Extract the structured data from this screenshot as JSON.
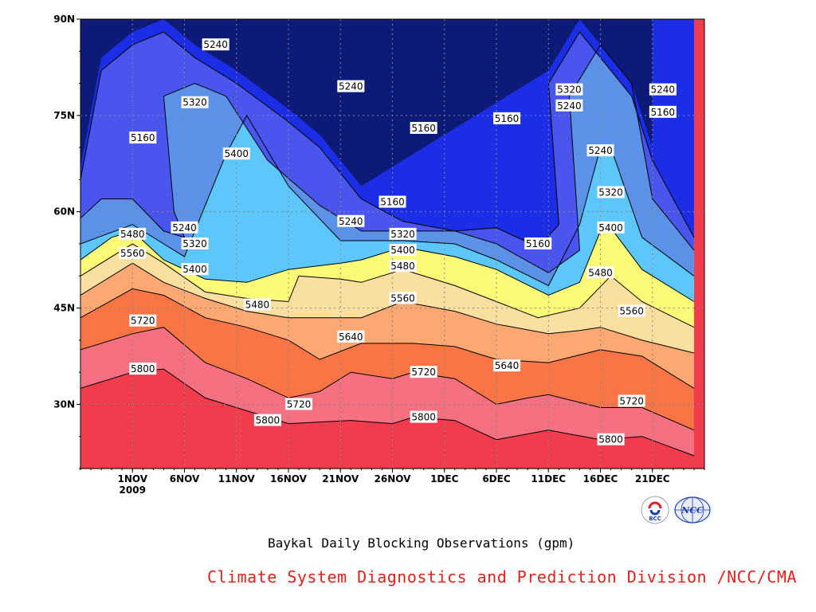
{
  "chart_data": {
    "type": "contour",
    "title": "Baykal Daily Blocking Observations (gpm)",
    "source": "Climate System Diagnostics and Prediction Division /NCC/CMA",
    "x_ticks": [
      {
        "label": "1NOV",
        "sub": "2009",
        "day": 0
      },
      {
        "label": "6NOV",
        "day": 5
      },
      {
        "label": "11NOV",
        "day": 10
      },
      {
        "label": "16NOV",
        "day": 15
      },
      {
        "label": "21NOV",
        "day": 20
      },
      {
        "label": "26NOV",
        "day": 25
      },
      {
        "label": "1DEC",
        "day": 30
      },
      {
        "label": "6DEC",
        "day": 35
      },
      {
        "label": "11DEC",
        "day": 40
      },
      {
        "label": "16DEC",
        "day": 45
      },
      {
        "label": "21DEC",
        "day": 50
      }
    ],
    "x_range": [
      "27OCT2009",
      "26DEC2009"
    ],
    "y_ticks": [
      {
        "label": "30N",
        "lat": 30
      },
      {
        "label": "45N",
        "lat": 45
      },
      {
        "label": "60N",
        "lat": 60
      },
      {
        "label": "75N",
        "lat": 75
      },
      {
        "label": "90N",
        "lat": 90
      }
    ],
    "ylim": [
      20,
      90
    ],
    "grid": true,
    "contour_levels": [
      5160,
      5240,
      5320,
      5400,
      5480,
      5560,
      5640,
      5720,
      5800
    ],
    "contour_colors": [
      "#0e1a78",
      "#1b2ee6",
      "#4a55ee",
      "#5b92e8",
      "#5dc6fa",
      "#fafa78",
      "#fae0a0",
      "#fba872",
      "#fa7546",
      "#f57080",
      "#f03c4c"
    ],
    "contour_lines": [
      {
        "level": 5800,
        "points": [
          [
            -5,
            32.5
          ],
          [
            0,
            35
          ],
          [
            3,
            35.5
          ],
          [
            7,
            31
          ],
          [
            11,
            29
          ],
          [
            15,
            27
          ],
          [
            21,
            27.5
          ],
          [
            25,
            27
          ],
          [
            27,
            28
          ],
          [
            31,
            27.5
          ],
          [
            35,
            24.5
          ],
          [
            40,
            26
          ],
          [
            45,
            24.5
          ],
          [
            49,
            25
          ],
          [
            54,
            22
          ]
        ]
      },
      {
        "level": 5720,
        "points": [
          [
            -5,
            38.5
          ],
          [
            0,
            41
          ],
          [
            3,
            42
          ],
          [
            7,
            36.5
          ],
          [
            11,
            34
          ],
          [
            15,
            31
          ],
          [
            18,
            32
          ],
          [
            21,
            35
          ],
          [
            25,
            34
          ],
          [
            27,
            35
          ],
          [
            31,
            34
          ],
          [
            35,
            30
          ],
          [
            38,
            31
          ],
          [
            40,
            31.5
          ],
          [
            45,
            29.5
          ],
          [
            49,
            29.5
          ],
          [
            54,
            26
          ]
        ]
      },
      {
        "level": 5640,
        "points": [
          [
            -5,
            43.5
          ],
          [
            0,
            48
          ],
          [
            3,
            47
          ],
          [
            7,
            43.5
          ],
          [
            11,
            42
          ],
          [
            15,
            40
          ],
          [
            18,
            37
          ],
          [
            22,
            39.5
          ],
          [
            27,
            39.5
          ],
          [
            31,
            39
          ],
          [
            35,
            37
          ],
          [
            40,
            36.5
          ],
          [
            45,
            38.5
          ],
          [
            49,
            37.5
          ],
          [
            54,
            32.5
          ]
        ]
      },
      {
        "level": 5560,
        "points": [
          [
            -5,
            47
          ],
          [
            0,
            52
          ],
          [
            3,
            49
          ],
          [
            7,
            46.5
          ],
          [
            11,
            44.5
          ],
          [
            15,
            43.5
          ],
          [
            18,
            43.5
          ],
          [
            22,
            43.5
          ],
          [
            26,
            46
          ],
          [
            31,
            44.5
          ],
          [
            35,
            42.5
          ],
          [
            40,
            41
          ],
          [
            43,
            41.5
          ],
          [
            45,
            42
          ],
          [
            49,
            40
          ],
          [
            54,
            38
          ]
        ]
      },
      {
        "level": 5480,
        "points": [
          [
            -5,
            50
          ],
          [
            0,
            55
          ],
          [
            3,
            52
          ],
          [
            7,
            47.5
          ],
          [
            11,
            46.5
          ],
          [
            15,
            46
          ],
          [
            16,
            50
          ],
          [
            20,
            49.5
          ],
          [
            22,
            49
          ],
          [
            26,
            51
          ],
          [
            31,
            48.5
          ],
          [
            35,
            46
          ],
          [
            39,
            43.5
          ],
          [
            43,
            45
          ],
          [
            46,
            50
          ],
          [
            49,
            46
          ],
          [
            54,
            42
          ]
        ]
      },
      {
        "level": 5400,
        "points": [
          [
            -5,
            52.5
          ],
          [
            -2,
            56
          ],
          [
            0,
            57
          ],
          [
            3,
            52.5
          ],
          [
            7,
            49.5
          ],
          [
            11,
            49
          ],
          [
            15,
            51
          ],
          [
            20,
            52
          ],
          [
            22,
            52.5
          ],
          [
            26,
            54.5
          ],
          [
            31,
            53
          ],
          [
            35,
            51
          ],
          [
            40,
            47
          ],
          [
            43,
            49
          ],
          [
            45,
            57
          ],
          [
            46,
            57.5
          ],
          [
            49,
            51
          ],
          [
            54,
            46
          ]
        ]
      },
      {
        "level": 5320,
        "points": [
          [
            -5,
            55
          ],
          [
            0,
            58
          ],
          [
            3,
            55
          ],
          [
            5,
            53
          ],
          [
            9,
            69
          ],
          [
            11,
            75
          ],
          [
            15,
            64
          ],
          [
            20,
            55.5
          ],
          [
            26,
            55.5
          ],
          [
            31,
            55
          ],
          [
            35,
            52.5
          ],
          [
            40,
            48.5
          ],
          [
            43,
            58
          ],
          [
            45,
            70
          ],
          [
            46,
            70
          ],
          [
            49,
            56
          ],
          [
            54,
            50
          ]
        ]
      },
      {
        "level": 5240,
        "points": [
          [
            -5,
            59
          ],
          [
            -3,
            62
          ],
          [
            0,
            62
          ],
          [
            3,
            57
          ],
          [
            5,
            56
          ],
          [
            4,
            60
          ],
          [
            3,
            78
          ],
          [
            6,
            80
          ],
          [
            9,
            78
          ],
          [
            13,
            68
          ],
          [
            18,
            61
          ],
          [
            22,
            57
          ],
          [
            26,
            57
          ],
          [
            31,
            57
          ],
          [
            35,
            55
          ],
          [
            40,
            50.5
          ],
          [
            43,
            54
          ],
          [
            42,
            78
          ],
          [
            45,
            86
          ],
          [
            48,
            80
          ],
          [
            50,
            62
          ],
          [
            54,
            54
          ]
        ]
      },
      {
        "level": 5160,
        "points": [
          [
            -5,
            65
          ],
          [
            -3,
            82
          ],
          [
            0,
            86
          ],
          [
            3,
            88
          ],
          [
            6,
            84
          ],
          [
            10,
            80
          ],
          [
            15,
            74
          ],
          [
            18,
            70
          ],
          [
            22,
            62
          ],
          [
            26,
            58.5
          ],
          [
            31,
            57
          ],
          [
            35,
            57.5
          ],
          [
            39,
            54.5
          ],
          [
            41,
            58
          ],
          [
            40,
            80
          ],
          [
            43,
            88
          ],
          [
            46,
            82
          ],
          [
            48,
            78
          ],
          [
            50,
            68
          ],
          [
            54,
            56
          ]
        ]
      }
    ],
    "contour_labels": [
      {
        "text": "5240",
        "day": 8,
        "lat": 86
      },
      {
        "text": "5320",
        "day": 6,
        "lat": 77
      },
      {
        "text": "5160",
        "day": 1,
        "lat": 71.5
      },
      {
        "text": "5400",
        "day": 10,
        "lat": 69
      },
      {
        "text": "5240",
        "day": 5,
        "lat": 57.5
      },
      {
        "text": "5320",
        "day": 6,
        "lat": 55
      },
      {
        "text": "5480",
        "day": 0,
        "lat": 56.5
      },
      {
        "text": "5560",
        "day": 0,
        "lat": 53.5
      },
      {
        "text": "5400",
        "day": 6,
        "lat": 51
      },
      {
        "text": "5480",
        "day": 12,
        "lat": 45.5
      },
      {
        "text": "5720",
        "day": 1,
        "lat": 43
      },
      {
        "text": "5800",
        "day": 1,
        "lat": 35.5
      },
      {
        "text": "5640",
        "day": 21,
        "lat": 40.5
      },
      {
        "text": "5720",
        "day": 16,
        "lat": 30
      },
      {
        "text": "5800",
        "day": 13,
        "lat": 27.5
      },
      {
        "text": "5240",
        "day": 21,
        "lat": 79.5
      },
      {
        "text": "5240",
        "day": 21,
        "lat": 58.5
      },
      {
        "text": "5160",
        "day": 25,
        "lat": 61.5
      },
      {
        "text": "5320",
        "day": 26,
        "lat": 56.5
      },
      {
        "text": "5400",
        "day": 26,
        "lat": 54
      },
      {
        "text": "5480",
        "day": 26,
        "lat": 51.5
      },
      {
        "text": "5560",
        "day": 26,
        "lat": 46.5
      },
      {
        "text": "5160",
        "day": 28,
        "lat": 73
      },
      {
        "text": "5720",
        "day": 28,
        "lat": 35
      },
      {
        "text": "5800",
        "day": 28,
        "lat": 28
      },
      {
        "text": "5160",
        "day": 36,
        "lat": 74.5
      },
      {
        "text": "5640",
        "day": 36,
        "lat": 36
      },
      {
        "text": "5160",
        "day": 39,
        "lat": 55
      },
      {
        "text": "5320",
        "day": 42,
        "lat": 79
      },
      {
        "text": "5240",
        "day": 42,
        "lat": 76.5
      },
      {
        "text": "5240",
        "day": 45,
        "lat": 69.5
      },
      {
        "text": "5320",
        "day": 46,
        "lat": 63
      },
      {
        "text": "5400",
        "day": 46,
        "lat": 57.5
      },
      {
        "text": "5480",
        "day": 45,
        "lat": 50.5
      },
      {
        "text": "5560",
        "day": 48,
        "lat": 44.5
      },
      {
        "text": "5720",
        "day": 48,
        "lat": 30.5
      },
      {
        "text": "5800",
        "day": 46,
        "lat": 24.5
      },
      {
        "text": "5240",
        "day": 51,
        "lat": 79
      },
      {
        "text": "5160",
        "day": 51,
        "lat": 75.5
      }
    ]
  },
  "caption": {
    "main": "Baykal Daily Blocking Observations (gpm)",
    "org": "Climate System Diagnostics and Prediction Division /NCC/CMA"
  },
  "logos": {
    "left_text": "BCC",
    "right_text": "NCC",
    "colors": {
      "blue": "#1a3fb0",
      "red": "#d8202a"
    }
  }
}
